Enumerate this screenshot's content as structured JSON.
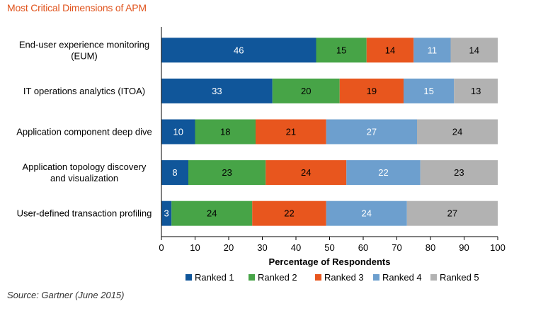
{
  "page": {
    "title": "Most Critical Dimensions of APM",
    "source": "Source: Gartner (June 2015)"
  },
  "chart_data": {
    "type": "bar",
    "orientation": "horizontal",
    "stacked": true,
    "title": "Most Critical Dimensions of APM",
    "xlabel": "Percentage of Respondents",
    "ylabel": "",
    "xlim": [
      0,
      100
    ],
    "xticks": [
      0,
      10,
      20,
      30,
      40,
      50,
      60,
      70,
      80,
      90,
      100
    ],
    "grid": false,
    "legend_position": "bottom",
    "categories": [
      [
        "End-user experience monitoring",
        "(EUM)"
      ],
      [
        "IT operations analytics (ITOA)"
      ],
      [
        "Application component deep dive"
      ],
      [
        "Application topology discovery",
        "and visualization"
      ],
      [
        "User-defined transaction profiling"
      ]
    ],
    "series": [
      {
        "name": "Ranked 1",
        "color": "#10569a",
        "label_color": "#ffffff",
        "values": [
          46,
          33,
          10,
          8,
          3
        ]
      },
      {
        "name": "Ranked 2",
        "color": "#47a447",
        "label_color": "#000000",
        "values": [
          15,
          20,
          18,
          23,
          24
        ]
      },
      {
        "name": "Ranked 3",
        "color": "#e8561e",
        "label_color": "#000000",
        "values": [
          14,
          19,
          21,
          24,
          22
        ]
      },
      {
        "name": "Ranked 4",
        "color": "#6d9fce",
        "label_color": "#ffffff",
        "values": [
          11,
          15,
          27,
          22,
          24
        ]
      },
      {
        "name": "Ranked 5",
        "color": "#b2b2b2",
        "label_color": "#000000",
        "values": [
          14,
          13,
          24,
          23,
          27
        ]
      }
    ]
  }
}
